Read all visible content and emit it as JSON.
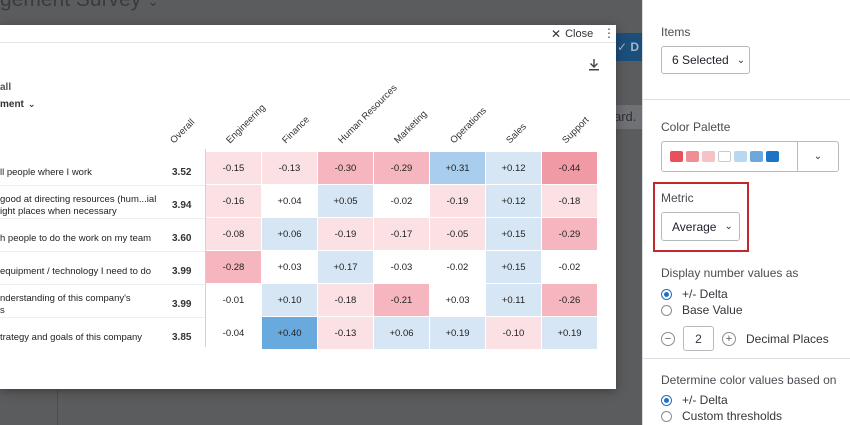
{
  "background": {
    "survey_title": "gement Survey",
    "button_fragment": "D",
    "board_fragment": "ard."
  },
  "modal": {
    "close_label": "Close",
    "overall_label": "all",
    "grouping_dropdown": "ment"
  },
  "table": {
    "columns": [
      "Overall",
      "Engineering",
      "Finance",
      "Human Resources",
      "Marketing",
      "Operations",
      "Sales",
      "Support"
    ],
    "rows": [
      {
        "label": "ll people where I work",
        "overall": "3.52",
        "values": [
          "-0.15",
          "-0.13",
          "-0.30",
          "-0.29",
          "+0.31",
          "+0.12",
          "-0.44"
        ]
      },
      {
        "label": "good at directing resources (hum...ial\night places when necessary",
        "overall": "3.94",
        "values": [
          "-0.16",
          "+0.04",
          "+0.05",
          "-0.02",
          "-0.19",
          "+0.12",
          "-0.18"
        ]
      },
      {
        "label": "h people to do the work on my team",
        "overall": "3.60",
        "values": [
          "-0.08",
          "+0.06",
          "-0.19",
          "-0.17",
          "-0.05",
          "+0.15",
          "-0.29"
        ]
      },
      {
        "label": "equipment / technology I need to do",
        "overall": "3.99",
        "values": [
          "-0.28",
          "+0.03",
          "+0.17",
          "-0.03",
          "-0.02",
          "+0.15",
          "-0.02"
        ]
      },
      {
        "label": "nderstanding of this company's\ns",
        "overall": "3.99",
        "values": [
          "-0.01",
          "+0.10",
          "-0.18",
          "-0.21",
          "+0.03",
          "+0.11",
          "-0.26"
        ]
      },
      {
        "label": "trategy and goals of this company",
        "overall": "3.85",
        "values": [
          "-0.04",
          "+0.40",
          "-0.13",
          "+0.06",
          "+0.19",
          "-0.10",
          "+0.19"
        ]
      }
    ],
    "cell_colors": [
      [
        "#fbe0e4",
        "#fbe0e4",
        "#f6b6bf",
        "#f6b6bf",
        "#a9cdec",
        "#d6e6f5",
        "#f09aa5"
      ],
      [
        "#fbe0e4",
        "#ffffff",
        "#d6e6f5",
        "#ffffff",
        "#fbe0e4",
        "#d6e6f5",
        "#fbe0e4"
      ],
      [
        "#fbe0e4",
        "#d6e6f5",
        "#fbe0e4",
        "#fbe0e4",
        "#fbe0e4",
        "#d6e6f5",
        "#f6b6bf"
      ],
      [
        "#f6b6bf",
        "#ffffff",
        "#d6e6f5",
        "#ffffff",
        "#ffffff",
        "#d6e6f5",
        "#ffffff"
      ],
      [
        "#ffffff",
        "#d6e6f5",
        "#fbe0e4",
        "#f6b6bf",
        "#ffffff",
        "#d6e6f5",
        "#f6b6bf"
      ],
      [
        "#ffffff",
        "#68a9de",
        "#fbe0e4",
        "#d6e6f5",
        "#d6e6f5",
        "#fbe0e4",
        "#d6e6f5"
      ]
    ]
  },
  "panel": {
    "items_label": "Items",
    "items_value": "6 Selected",
    "palette_label": "Color Palette",
    "palette_swatches": [
      "#e8505b",
      "#f08e95",
      "#f5c2c6",
      "#ffffff",
      "#b9d7f0",
      "#6ca8dc",
      "#1b75c4"
    ],
    "metric_label": "Metric",
    "metric_value": "Average",
    "display_label": "Display number values as",
    "display_options": [
      "+/- Delta",
      "Base Value"
    ],
    "display_selected": 0,
    "decimal_value": "2",
    "decimal_label": "Decimal Places",
    "color_basis_label": "Determine color values based on",
    "color_basis_options": [
      "+/- Delta",
      "Custom thresholds"
    ],
    "color_basis_selected": 0
  }
}
